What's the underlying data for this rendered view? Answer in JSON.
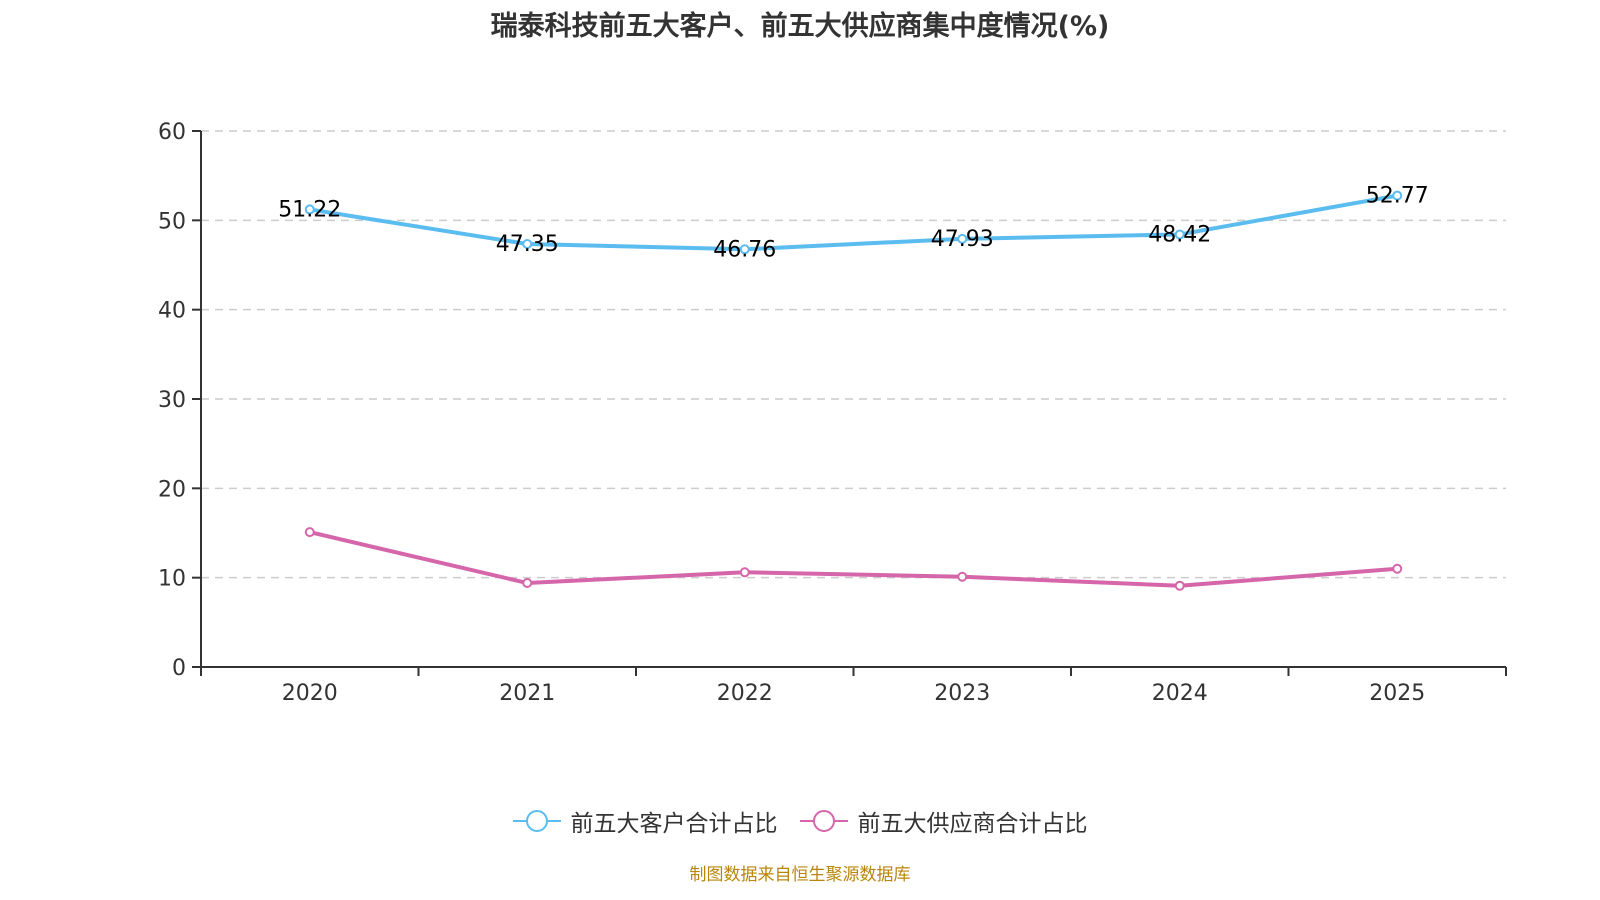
{
  "chart_data": {
    "type": "line",
    "title": "瑞泰科技前五大客户、前五大供应商集中度情况(%)",
    "xlabel": "",
    "ylabel": "",
    "categories": [
      "2020",
      "2021",
      "2022",
      "2023",
      "2024",
      "2025"
    ],
    "ylim": [
      0,
      60
    ],
    "yticks": [
      "0",
      "10",
      "20",
      "30",
      "40",
      "50",
      "60"
    ],
    "grid": true,
    "legend_position": "bottom",
    "series": [
      {
        "name": "前五大客户合计占比",
        "color": "#5bbcf0",
        "values": [
          51.22,
          47.35,
          46.76,
          47.93,
          48.42,
          52.77
        ],
        "labels": [
          "51.22",
          "47.35",
          "46.76",
          "47.93",
          "48.42",
          "52.77"
        ],
        "show_labels": true
      },
      {
        "name": "前五大供应商合计占比",
        "color": "#d466a9",
        "values": [
          15.1,
          9.4,
          10.6,
          10.1,
          9.1,
          11.0
        ],
        "show_labels": false
      }
    ]
  },
  "footer": {
    "source": "制图数据来自恒生聚源数据库"
  }
}
